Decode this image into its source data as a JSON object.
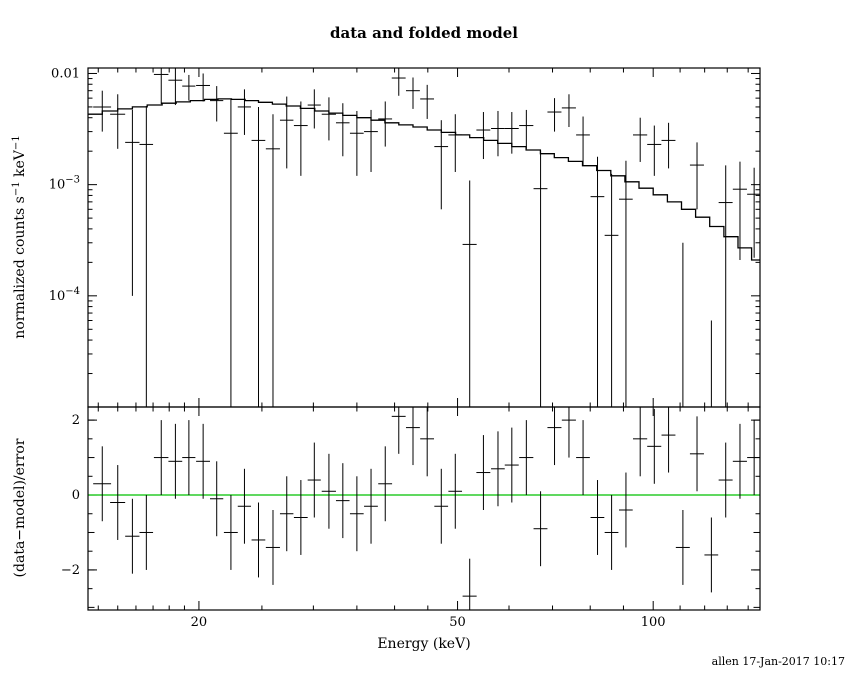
{
  "footer": {
    "text": "allen 17-Jan-2017 10:17"
  },
  "colors": {
    "foreground": "#000000",
    "background": "#ffffff",
    "zero_line": "#00c000"
  },
  "chart_data": {
    "type": "scatter",
    "title": "data and folded model",
    "xlabel": "Energy (keV)",
    "xscale": "log",
    "xlim": [
      13.5,
      146
    ],
    "xticks": [
      20,
      50,
      100
    ],
    "grid": false,
    "legend": false,
    "panels": [
      {
        "name": "spectrum",
        "ylabel_parts": [
          {
            "text": "normalized counts s"
          },
          {
            "text": "−1",
            "sup": true
          },
          {
            "text": " keV"
          },
          {
            "text": "−1",
            "sup": true
          }
        ],
        "yscale": "log",
        "ylim": [
          1e-05,
          0.0112
        ],
        "yticks": [
          {
            "v": 0.01,
            "base": "0.01"
          },
          {
            "v": 0.001,
            "base": "10",
            "exp": "−3"
          },
          {
            "v": 0.0001,
            "base": "10",
            "exp": "−4"
          }
        ]
      },
      {
        "name": "residuals",
        "ylabel": "(data−model)/error",
        "yscale": "linear",
        "ylim": [
          -3.07,
          2.35
        ],
        "yticks": [
          {
            "v": 2,
            "base": "2"
          },
          {
            "v": 0,
            "base": "0"
          },
          {
            "v": -2,
            "base": "−2"
          }
        ],
        "zero_line": {
          "y": 0,
          "color": "#00c000"
        }
      }
    ],
    "model_steps": {
      "e": [
        13.8,
        14.6,
        15.4,
        16.2,
        17.1,
        18.0,
        18.9,
        19.9,
        20.9,
        21.9,
        23.0,
        24.1,
        25.3,
        26.6,
        27.9,
        29.4,
        30.9,
        32.5,
        34.1,
        35.9,
        37.7,
        39.6,
        41.6,
        43.8,
        46.0,
        48.4,
        50.9,
        53.5,
        56.2,
        59.1,
        62.1,
        65.4,
        68.7,
        72.2,
        75.9,
        79.8,
        83.9,
        88.2,
        92.7,
        97.5,
        102.5,
        107.8,
        113.3,
        119.1,
        125.2,
        131.7,
        138.4,
        145.0
      ],
      "v": [
        0.0043,
        0.0046,
        0.0048,
        0.005,
        0.0052,
        0.0054,
        0.00555,
        0.0057,
        0.00585,
        0.0059,
        0.00585,
        0.0057,
        0.0055,
        0.0053,
        0.0051,
        0.00485,
        0.0046,
        0.0044,
        0.0042,
        0.004,
        0.0038,
        0.0036,
        0.00345,
        0.0033,
        0.0031,
        0.00295,
        0.0028,
        0.00265,
        0.0025,
        0.00235,
        0.0022,
        0.00205,
        0.0019,
        0.00175,
        0.00162,
        0.00148,
        0.00134,
        0.0012,
        0.00106,
        0.00093,
        0.00081,
        0.0007,
        0.0006,
        0.00051,
        0.00042,
        0.00034,
        0.00027,
        0.00021
      ]
    },
    "points": [
      {
        "e": 14.2,
        "w": 0.45,
        "rate": 0.005,
        "err": 0.002,
        "resid": 0.3,
        "resid_err": 1
      },
      {
        "e": 15.0,
        "w": 0.4,
        "rate": 0.0043,
        "err": 0.0022,
        "resid": -0.2,
        "resid_err": 1
      },
      {
        "e": 15.8,
        "w": 0.4,
        "rate": 0.0024,
        "err": 0.0023,
        "resid": -1.1,
        "resid_err": 1
      },
      {
        "e": 16.6,
        "w": 0.4,
        "rate": 0.0023,
        "err": 0.0028,
        "resid": -1.0,
        "resid_err": 1
      },
      {
        "e": 17.5,
        "w": 0.45,
        "rate": 0.0098,
        "err": 0.0045,
        "resid": 1.0,
        "resid_err": 1
      },
      {
        "e": 18.4,
        "w": 0.45,
        "rate": 0.0087,
        "err": 0.0035,
        "resid": 0.9,
        "resid_err": 1
      },
      {
        "e": 19.3,
        "w": 0.45,
        "rate": 0.0077,
        "err": 0.002,
        "resid": 1.0,
        "resid_err": 1
      },
      {
        "e": 20.3,
        "w": 0.5,
        "rate": 0.0078,
        "err": 0.0022,
        "resid": 0.9,
        "resid_err": 1
      },
      {
        "e": 21.3,
        "w": 0.5,
        "rate": 0.0057,
        "err": 0.002,
        "resid": -0.1,
        "resid_err": 1
      },
      {
        "e": 22.4,
        "w": 0.55,
        "rate": 0.0029,
        "err": 0.003,
        "resid": -1.0,
        "resid_err": 1
      },
      {
        "e": 23.5,
        "w": 0.55,
        "rate": 0.005,
        "err": 0.0022,
        "resid": -0.3,
        "resid_err": 1
      },
      {
        "e": 24.7,
        "w": 0.6,
        "rate": 0.0025,
        "err": 0.0025,
        "resid": -1.2,
        "resid_err": 1
      },
      {
        "e": 26.0,
        "w": 0.65,
        "rate": 0.0021,
        "err": 0.0022,
        "resid": -1.4,
        "resid_err": 1
      },
      {
        "e": 27.3,
        "w": 0.65,
        "rate": 0.0038,
        "err": 0.0024,
        "resid": -0.5,
        "resid_err": 1
      },
      {
        "e": 28.7,
        "w": 0.7,
        "rate": 0.0034,
        "err": 0.0022,
        "resid": -0.6,
        "resid_err": 1
      },
      {
        "e": 30.1,
        "w": 0.7,
        "rate": 0.0052,
        "err": 0.002,
        "resid": 0.4,
        "resid_err": 1
      },
      {
        "e": 31.7,
        "w": 0.8,
        "rate": 0.0043,
        "err": 0.0018,
        "resid": 0.1,
        "resid_err": 1
      },
      {
        "e": 33.3,
        "w": 0.8,
        "rate": 0.0036,
        "err": 0.0018,
        "resid": -0.15,
        "resid_err": 1
      },
      {
        "e": 35.0,
        "w": 0.85,
        "rate": 0.0029,
        "err": 0.0017,
        "resid": -0.5,
        "resid_err": 1
      },
      {
        "e": 36.8,
        "w": 0.9,
        "rate": 0.003,
        "err": 0.0017,
        "resid": -0.3,
        "resid_err": 1
      },
      {
        "e": 38.7,
        "w": 0.95,
        "rate": 0.0039,
        "err": 0.0017,
        "resid": 0.3,
        "resid_err": 1
      },
      {
        "e": 40.6,
        "w": 1.0,
        "rate": 0.0091,
        "err": 0.0028,
        "resid": 2.1,
        "resid_err": 1
      },
      {
        "e": 42.7,
        "w": 1.05,
        "rate": 0.007,
        "err": 0.0022,
        "resid": 1.8,
        "resid_err": 1
      },
      {
        "e": 44.9,
        "w": 1.1,
        "rate": 0.0059,
        "err": 0.002,
        "resid": 1.5,
        "resid_err": 1
      },
      {
        "e": 47.2,
        "w": 1.15,
        "rate": 0.0022,
        "err": 0.0016,
        "resid": -0.3,
        "resid_err": 1
      },
      {
        "e": 49.6,
        "w": 1.2,
        "rate": 0.0028,
        "err": 0.0015,
        "resid": 0.1,
        "resid_err": 1
      },
      {
        "e": 52.2,
        "w": 1.3,
        "rate": 0.00029,
        "err": 0.0008,
        "resid": -2.7,
        "resid_err": 1
      },
      {
        "e": 54.8,
        "w": 1.35,
        "rate": 0.0031,
        "err": 0.0014,
        "resid": 0.6,
        "resid_err": 1
      },
      {
        "e": 57.7,
        "w": 1.4,
        "rate": 0.0032,
        "err": 0.0014,
        "resid": 0.7,
        "resid_err": 1
      },
      {
        "e": 60.6,
        "w": 1.5,
        "rate": 0.0032,
        "err": 0.0013,
        "resid": 0.8,
        "resid_err": 1
      },
      {
        "e": 63.8,
        "w": 1.6,
        "rate": 0.0034,
        "err": 0.0013,
        "resid": 1.0,
        "resid_err": 1
      },
      {
        "e": 67.1,
        "w": 1.65,
        "rate": 0.00092,
        "err": 0.0011,
        "resid": -0.9,
        "resid_err": 1
      },
      {
        "e": 70.5,
        "w": 1.75,
        "rate": 0.0045,
        "err": 0.0015,
        "resid": 1.8,
        "resid_err": 1
      },
      {
        "e": 74.2,
        "w": 1.85,
        "rate": 0.0049,
        "err": 0.0016,
        "resid": 2.0,
        "resid_err": 1
      },
      {
        "e": 78.0,
        "w": 1.9,
        "rate": 0.0028,
        "err": 0.0013,
        "resid": 1.0,
        "resid_err": 1
      },
      {
        "e": 82.1,
        "w": 2.0,
        "rate": 0.00078,
        "err": 0.001,
        "resid": -0.6,
        "resid_err": 1
      },
      {
        "e": 86.3,
        "w": 2.1,
        "rate": 0.00035,
        "err": 0.0009,
        "resid": -1.0,
        "resid_err": 1
      },
      {
        "e": 90.8,
        "w": 2.2,
        "rate": 0.00074,
        "err": 0.0009,
        "resid": -0.4,
        "resid_err": 1
      },
      {
        "e": 95.5,
        "w": 2.4,
        "rate": 0.0028,
        "err": 0.0012,
        "resid": 1.5,
        "resid_err": 1
      },
      {
        "e": 100.4,
        "w": 2.5,
        "rate": 0.0023,
        "err": 0.0011,
        "resid": 1.3,
        "resid_err": 1
      },
      {
        "e": 105.6,
        "w": 2.6,
        "rate": 0.0025,
        "err": 0.0011,
        "resid": 1.6,
        "resid_err": 1
      },
      {
        "e": 111.1,
        "w": 2.75,
        "rate": -0.0005,
        "err": 0.0008,
        "resid": -1.4,
        "resid_err": 1
      },
      {
        "e": 116.8,
        "w": 2.9,
        "rate": 0.0015,
        "err": 0.0009,
        "resid": 1.1,
        "resid_err": 1
      },
      {
        "e": 122.9,
        "w": 3.0,
        "rate": -0.00059,
        "err": 0.00065,
        "resid": -1.6,
        "resid_err": 1
      },
      {
        "e": 129.3,
        "w": 3.2,
        "rate": 0.00069,
        "err": 0.0008,
        "resid": 0.4,
        "resid_err": 1
      },
      {
        "e": 136.0,
        "w": 3.4,
        "rate": 0.00091,
        "err": 0.0007,
        "resid": 0.9,
        "resid_err": 1
      },
      {
        "e": 143.0,
        "w": 3.5,
        "rate": 0.00082,
        "err": 0.0006,
        "resid": 1.0,
        "resid_err": 1
      }
    ]
  }
}
